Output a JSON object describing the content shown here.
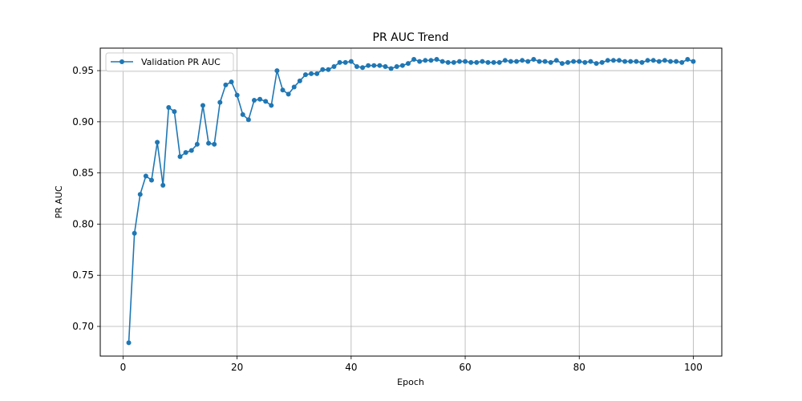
{
  "chart_data": {
    "type": "line",
    "title": "PR AUC Trend",
    "xlabel": "Epoch",
    "ylabel": "PR AUC",
    "xlim": [
      -4,
      105
    ],
    "ylim": [
      0.671,
      0.972
    ],
    "xticks": [
      0,
      20,
      40,
      60,
      80,
      100
    ],
    "yticks": [
      0.7,
      0.75,
      0.8,
      0.85,
      0.9,
      0.95
    ],
    "grid": true,
    "legend_position": "top-left",
    "color": "#1f77b4",
    "series": [
      {
        "name": "Validation PR AUC",
        "x": [
          1,
          2,
          3,
          4,
          5,
          6,
          7,
          8,
          9,
          10,
          11,
          12,
          13,
          14,
          15,
          16,
          17,
          18,
          19,
          20,
          21,
          22,
          23,
          24,
          25,
          26,
          27,
          28,
          29,
          30,
          31,
          32,
          33,
          34,
          35,
          36,
          37,
          38,
          39,
          40,
          41,
          42,
          43,
          44,
          45,
          46,
          47,
          48,
          49,
          50,
          51,
          52,
          53,
          54,
          55,
          56,
          57,
          58,
          59,
          60,
          61,
          62,
          63,
          64,
          65,
          66,
          67,
          68,
          69,
          70,
          71,
          72,
          73,
          74,
          75,
          76,
          77,
          78,
          79,
          80,
          81,
          82,
          83,
          84,
          85,
          86,
          87,
          88,
          89,
          90,
          91,
          92,
          93,
          94,
          95,
          96,
          97,
          98,
          99,
          100
        ],
        "values": [
          0.684,
          0.791,
          0.829,
          0.847,
          0.843,
          0.88,
          0.838,
          0.914,
          0.91,
          0.866,
          0.87,
          0.872,
          0.878,
          0.916,
          0.879,
          0.878,
          0.919,
          0.936,
          0.939,
          0.926,
          0.907,
          0.902,
          0.921,
          0.922,
          0.92,
          0.916,
          0.95,
          0.931,
          0.927,
          0.934,
          0.94,
          0.946,
          0.947,
          0.947,
          0.951,
          0.951,
          0.954,
          0.958,
          0.958,
          0.959,
          0.954,
          0.953,
          0.955,
          0.955,
          0.955,
          0.954,
          0.952,
          0.954,
          0.955,
          0.957,
          0.961,
          0.959,
          0.96,
          0.96,
          0.961,
          0.959,
          0.958,
          0.958,
          0.959,
          0.959,
          0.958,
          0.958,
          0.959,
          0.958,
          0.958,
          0.958,
          0.96,
          0.959,
          0.959,
          0.96,
          0.959,
          0.961,
          0.959,
          0.959,
          0.958,
          0.96,
          0.957,
          0.958,
          0.959,
          0.959,
          0.958,
          0.959,
          0.957,
          0.958,
          0.96,
          0.96,
          0.96,
          0.959,
          0.959,
          0.959,
          0.958,
          0.96,
          0.96,
          0.959,
          0.96,
          0.959,
          0.959,
          0.958,
          0.961,
          0.959
        ]
      }
    ]
  }
}
